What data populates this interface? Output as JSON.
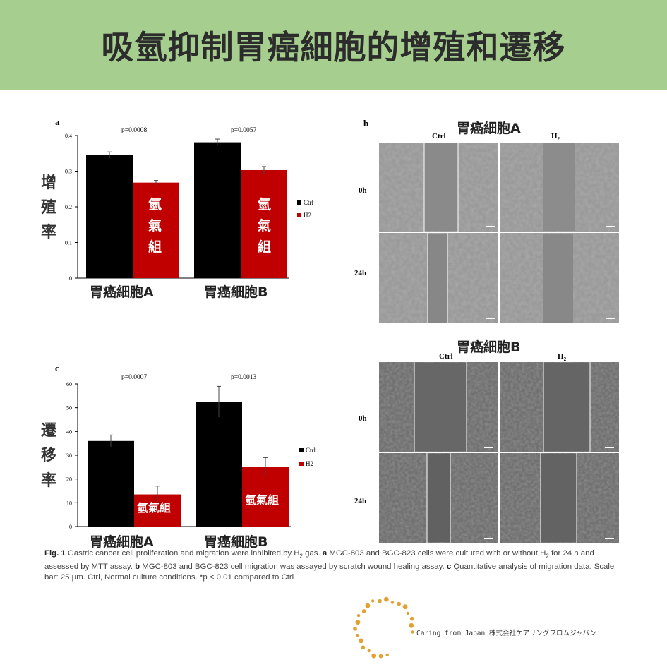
{
  "title": "吸氫抑制胃癌細胞的增殖和遷移",
  "colors": {
    "banner": "#a6cf8f",
    "ctrl": "#000000",
    "h2": "#c00000",
    "logo_dots": "#e3a033"
  },
  "panel_a": {
    "letter": "a",
    "ylabel": [
      "增",
      "殖",
      "率"
    ],
    "pvalues": [
      "p=0.0008",
      "p=0.0057"
    ],
    "bar_label": [
      "氫",
      "氣",
      "組"
    ],
    "legend": [
      "Ctrl",
      "H2"
    ],
    "categories": [
      "胃癌細胞A",
      "胃癌細胞B"
    ],
    "yticks": [
      "0",
      "0.1",
      "0.2",
      "0.3",
      "0.4"
    ]
  },
  "panel_c": {
    "letter": "c",
    "ylabel": [
      "遷",
      "移",
      "率"
    ],
    "pvalues": [
      "p=0.0007",
      "p=0.0013"
    ],
    "bar_label": "氫氣組",
    "legend": [
      "Ctrl",
      "H2"
    ],
    "categories": [
      "胃癌細胞A",
      "胃癌細胞B"
    ],
    "yticks": [
      "0",
      "10",
      "20",
      "30",
      "40",
      "50",
      "60"
    ]
  },
  "panel_b": {
    "letter": "b",
    "title_a": "胃癌細胞A",
    "title_b": "胃癌細胞B",
    "col_ctrl": "Ctrl",
    "col_h2": "H",
    "col_h2_sub": "2",
    "rows": [
      "0h",
      "24h"
    ]
  },
  "chart_data": [
    {
      "type": "bar",
      "categories": [
        "胃癌細胞A",
        "胃癌細胞B"
      ],
      "series": [
        {
          "name": "Ctrl",
          "values": [
            0.345,
            0.381
          ],
          "errors": [
            0.009,
            0.009
          ]
        },
        {
          "name": "H2",
          "values": [
            0.268,
            0.303
          ],
          "errors": [
            0.006,
            0.01
          ]
        }
      ],
      "ylim": [
        0,
        0.4
      ],
      "annotations": [
        "p=0.0008",
        "p=0.0057"
      ]
    },
    {
      "type": "bar",
      "categories": [
        "胃癌細胞A",
        "胃癌細胞B"
      ],
      "series": [
        {
          "name": "Ctrl",
          "values": [
            36,
            52.5
          ],
          "errors": [
            2.5,
            6.5
          ]
        },
        {
          "name": "H2",
          "values": [
            13.5,
            25
          ],
          "errors": [
            3.5,
            4.0
          ]
        }
      ],
      "ylim": [
        0,
        60
      ],
      "annotations": [
        "p=0.0007",
        "p=0.0013"
      ]
    }
  ],
  "caption": {
    "fig": "Fig. 1",
    "t1": "Gastric cancer cell proliferation and migration were inhibited by H",
    "t1_sub": "2",
    "t2": " gas. ",
    "a": "a",
    "t3": " MGC-803 and BGC-823 cells were cultured with or without H",
    "t3_sub": "2",
    "t4": " for 24 h and assessed by MTT assay. ",
    "b": "b",
    "t5": " MGC-803 and BGC-823 cell migration was assayed by scratch wound healing assay. ",
    "c": "c",
    "t6": " Quantitative analysis of migration data. Scale bar: 25 μm. Ctrl, Normal culture conditions. *p < 0.01 compared to Ctrl"
  },
  "footer": {
    "text": "Caring from Japan 株式会社ケアリングフロムジャパン"
  }
}
